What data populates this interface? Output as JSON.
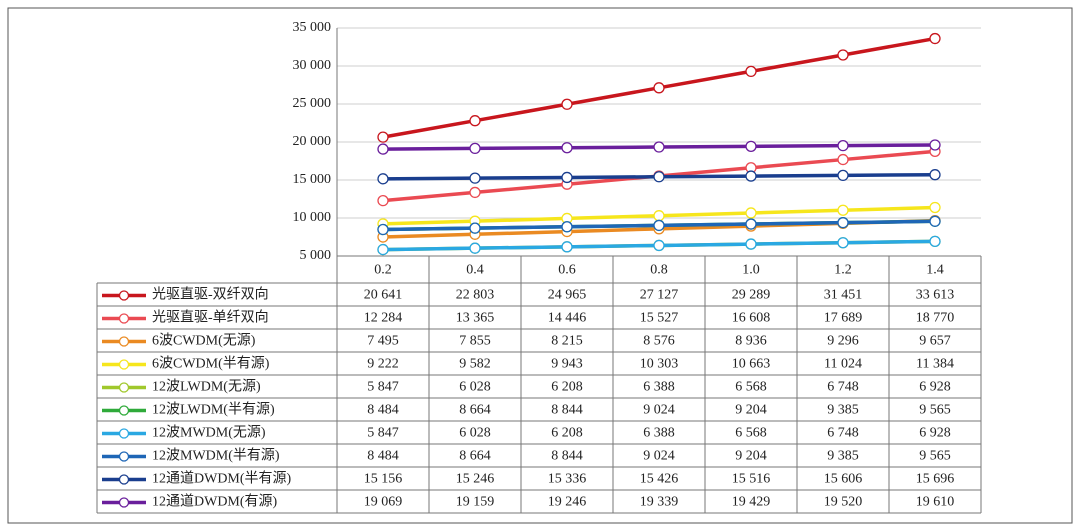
{
  "chart_data": {
    "type": "line",
    "categories": [
      "0.2",
      "0.4",
      "0.6",
      "0.8",
      "1.0",
      "1.2",
      "1.4"
    ],
    "ylim": [
      5000,
      35000
    ],
    "yticks": [
      {
        "value": 5000,
        "label": "5 000"
      },
      {
        "value": 10000,
        "label": "10 000"
      },
      {
        "value": 15000,
        "label": "15 000"
      },
      {
        "value": 20000,
        "label": "20 000"
      },
      {
        "value": 25000,
        "label": "25 000"
      },
      {
        "value": 30000,
        "label": "30 000"
      },
      {
        "value": 35000,
        "label": "35 000"
      }
    ],
    "grid": true,
    "series": [
      {
        "name": "光驱直驱-双纤双向",
        "color": "#c8161d",
        "values": [
          20641,
          22803,
          24965,
          27127,
          29289,
          31451,
          33613
        ],
        "value_labels": [
          "20 641",
          "22 803",
          "24 965",
          "27 127",
          "29 289",
          "31 451",
          "33 613"
        ]
      },
      {
        "name": "光驱直驱-单纤双向",
        "color": "#ea4a52",
        "values": [
          12284,
          13365,
          14446,
          15527,
          16608,
          17689,
          18770
        ],
        "value_labels": [
          "12 284",
          "13 365",
          "14 446",
          "15 527",
          "16 608",
          "17 689",
          "18 770"
        ]
      },
      {
        "name": "6波CWDM(无源)",
        "color": "#ea8a22",
        "values": [
          7495,
          7855,
          8215,
          8576,
          8936,
          9296,
          9657
        ],
        "value_labels": [
          "7 495",
          "7 855",
          "8 215",
          "8 576",
          "8 936",
          "9 296",
          "9 657"
        ]
      },
      {
        "name": "6波CWDM(半有源)",
        "color": "#f6e61c",
        "values": [
          9222,
          9582,
          9943,
          10303,
          10663,
          11024,
          11384
        ],
        "value_labels": [
          "9 222",
          "9 582",
          "9 943",
          "10 303",
          "10 663",
          "11 024",
          "11 384"
        ]
      },
      {
        "name": "12波LWDM(无源)",
        "color": "#a0c82c",
        "values": [
          5847,
          6028,
          6208,
          6388,
          6568,
          6748,
          6928
        ],
        "value_labels": [
          "5 847",
          "6 028",
          "6 208",
          "6 388",
          "6 568",
          "6 748",
          "6 928"
        ]
      },
      {
        "name": "12波LWDM(半有源)",
        "color": "#2faa3a",
        "values": [
          8484,
          8664,
          8844,
          9024,
          9204,
          9385,
          9565
        ],
        "value_labels": [
          "8 484",
          "8 664",
          "8 844",
          "9 024",
          "9 204",
          "9 385",
          "9 565"
        ]
      },
      {
        "name": "12波MWDM(无源)",
        "color": "#2aa8e2",
        "values": [
          5847,
          6028,
          6208,
          6388,
          6568,
          6748,
          6928
        ],
        "value_labels": [
          "5 847",
          "6 028",
          "6 208",
          "6 388",
          "6 568",
          "6 748",
          "6 928"
        ]
      },
      {
        "name": "12波MWDM(半有源)",
        "color": "#1e66b6",
        "values": [
          8484,
          8664,
          8844,
          9024,
          9204,
          9385,
          9565
        ],
        "value_labels": [
          "8 484",
          "8 664",
          "8 844",
          "9 024",
          "9 204",
          "9 385",
          "9 565"
        ]
      },
      {
        "name": "12通道DWDM(半有源)",
        "color": "#1a3e8e",
        "values": [
          15156,
          15246,
          15336,
          15426,
          15516,
          15606,
          15696
        ],
        "value_labels": [
          "15 156",
          "15 246",
          "15 336",
          "15 426",
          "15 516",
          "15 606",
          "15 696"
        ]
      },
      {
        "name": "12通道DWDM(有源)",
        "color": "#6a1f9c",
        "values": [
          19069,
          19159,
          19246,
          19339,
          19429,
          19520,
          19610
        ],
        "value_labels": [
          "19 069",
          "19 159",
          "19 246",
          "19 339",
          "19 429",
          "19 520",
          "19 610"
        ]
      }
    ]
  }
}
